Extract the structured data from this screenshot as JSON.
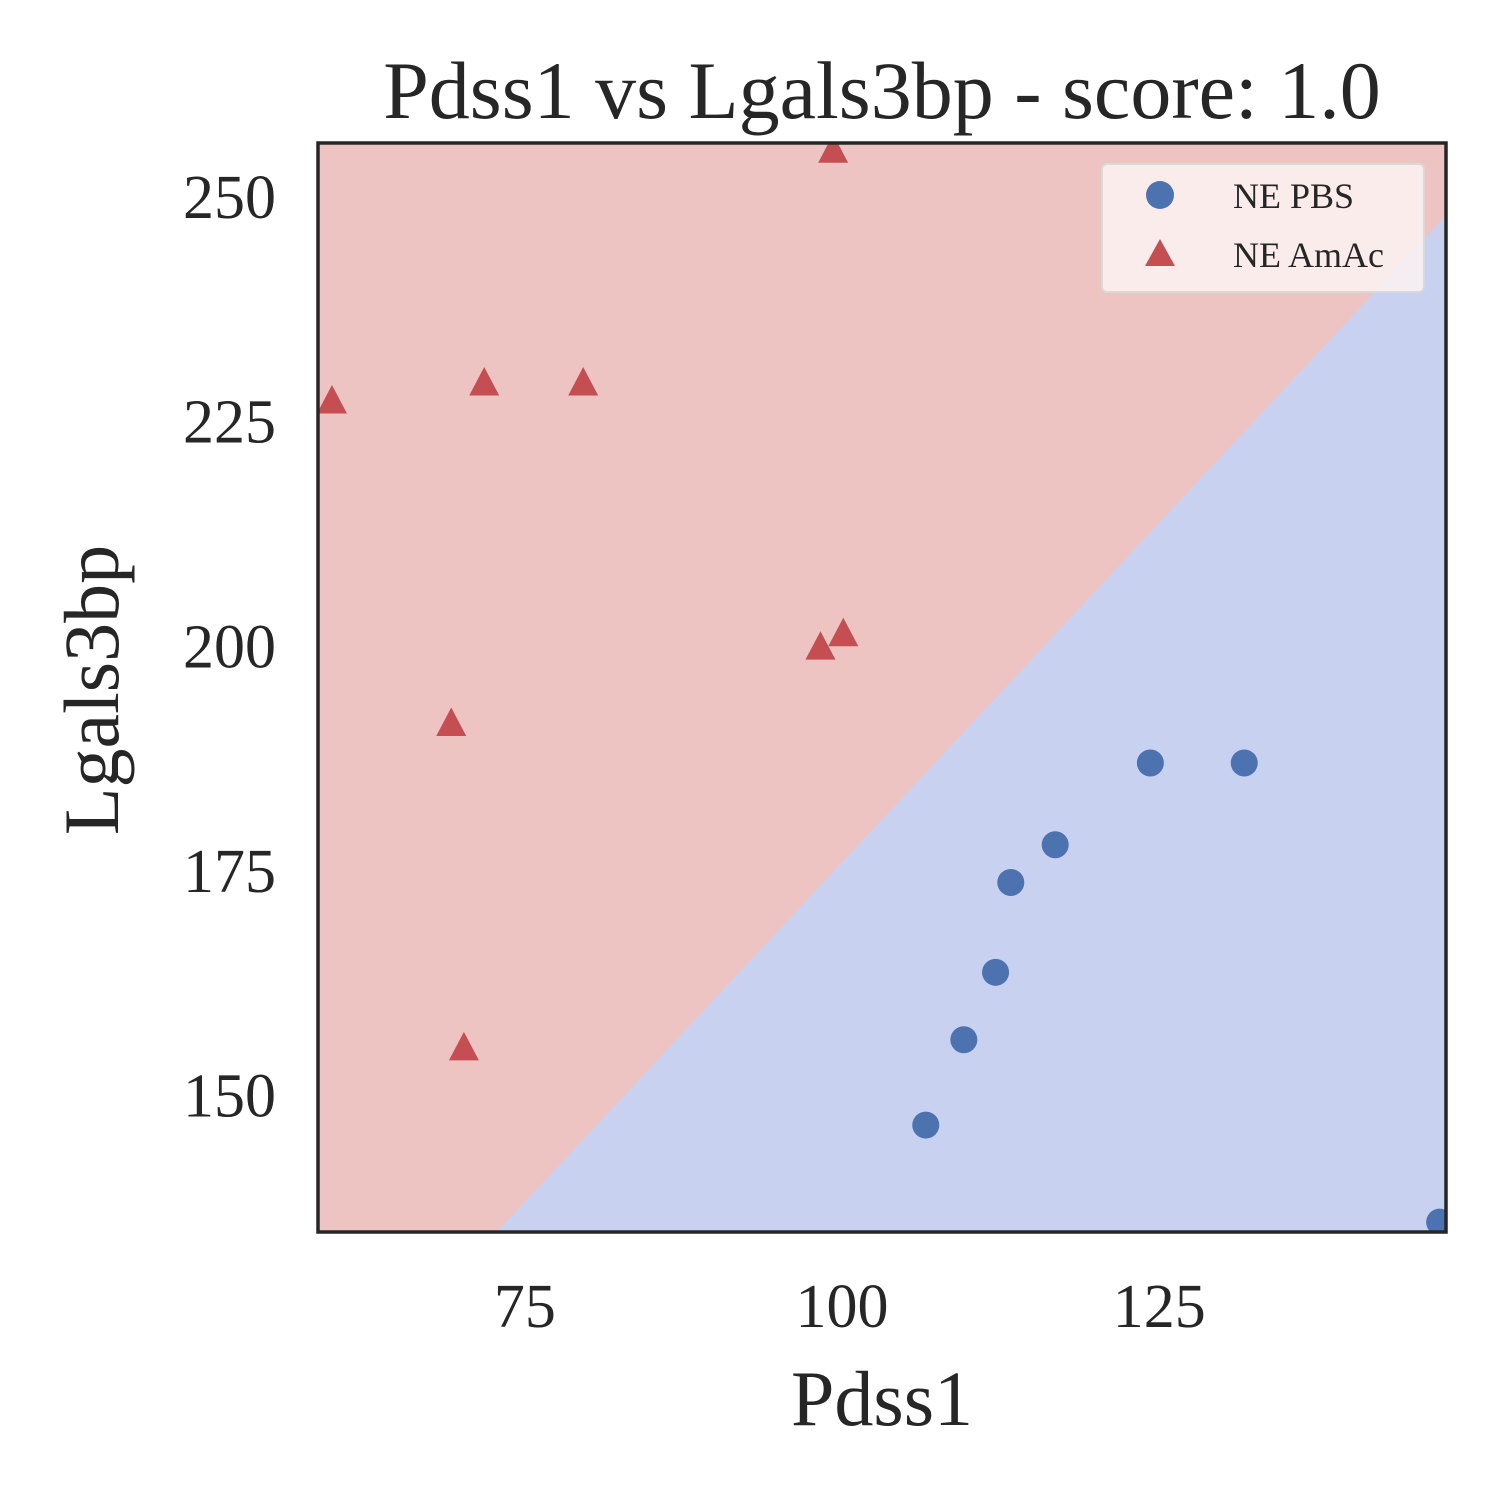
{
  "chart_data": {
    "type": "scatter",
    "title": "Pdss1 vs Lgals3bp - score: 1.0",
    "xlabel": "Pdss1",
    "ylabel": "Lgals3bp",
    "xlim": [
      58.7,
      147.6
    ],
    "ylim": [
      134.7,
      255.9
    ],
    "xticks": [
      75,
      100,
      125
    ],
    "yticks": [
      150,
      175,
      200,
      225,
      250
    ],
    "grid": false,
    "legend_position": "top-right",
    "decision_boundary": {
      "points": [
        [
          72.8,
          134.7
        ],
        [
          147.6,
          247.8
        ]
      ],
      "region_above": {
        "label": "NE AmAc",
        "color": "#eec4c3"
      },
      "region_below": {
        "label": "NE PBS",
        "color": "#c9d1f1"
      }
    },
    "series": [
      {
        "name": "NE PBS",
        "marker": "circle",
        "color": "#4c72b0",
        "points": [
          [
            106.6,
            146.6
          ],
          [
            109.6,
            156.1
          ],
          [
            112.1,
            163.6
          ],
          [
            113.3,
            173.6
          ],
          [
            116.8,
            177.8
          ],
          [
            124.3,
            186.9
          ],
          [
            131.7,
            186.9
          ],
          [
            147.1,
            135.8
          ]
        ]
      },
      {
        "name": "NE AmAc",
        "marker": "triangle",
        "color": "#c44e52",
        "points": [
          [
            59.8,
            227.3
          ],
          [
            69.2,
            191.4
          ],
          [
            70.2,
            155.3
          ],
          [
            71.8,
            229.3
          ],
          [
            79.6,
            229.3
          ],
          [
            98.3,
            199.9
          ],
          [
            100.1,
            201.4
          ],
          [
            99.3,
            255.2
          ]
        ]
      }
    ]
  }
}
